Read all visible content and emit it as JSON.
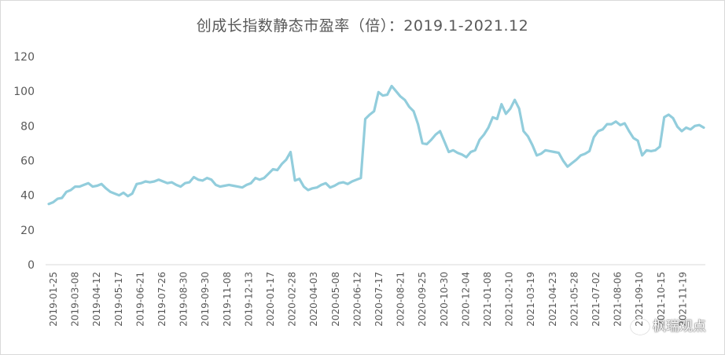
{
  "chart_data": {
    "type": "line",
    "title": "创成长指数静态市盈率（倍）：2019.1-2021.12",
    "xlabel": "",
    "ylabel": "",
    "ylim": [
      0,
      120
    ],
    "yticks": [
      0,
      20,
      40,
      60,
      80,
      100,
      120
    ],
    "grid": false,
    "legend": "none",
    "line_color": "#92cddc",
    "xtick_labels": [
      "2019-01-25",
      "2019-03-08",
      "2019-04-12",
      "2019-05-17",
      "2019-06-21",
      "2019-07-26",
      "2019-08-30",
      "2019-09-30",
      "2019-11-08",
      "2019-12-13",
      "2020-01-17",
      "2020-02-28",
      "2020-04-03",
      "2020-05-08",
      "2020-06-12",
      "2020-07-17",
      "2020-08-21",
      "2020-09-25",
      "2020-10-30",
      "2020-12-04",
      "2021-01-08",
      "2021-02-10",
      "2021-03-19",
      "2021-04-23",
      "2021-05-28",
      "2021-07-02",
      "2021-08-06",
      "2021-09-10",
      "2021-10-15",
      "2021-11-19"
    ],
    "series": [
      {
        "values": [
          35,
          36,
          38,
          38.5,
          42,
          43,
          45,
          45,
          46,
          47,
          45,
          45.5,
          46.5,
          44,
          42,
          41,
          40,
          41.5,
          39.5,
          41,
          46.5,
          47,
          48,
          47.5,
          48,
          49,
          48,
          47,
          47.5,
          46,
          45,
          47,
          47.5,
          50.5,
          49,
          48.5,
          50,
          49,
          46,
          45,
          45.5,
          46,
          45.5,
          45,
          44.5,
          46,
          47,
          50,
          49,
          50,
          52.5,
          55,
          54.5,
          58,
          60.5,
          65,
          48.5,
          49.5,
          45,
          43,
          44,
          44.5,
          46,
          47,
          44.5,
          45.5,
          47,
          47.5,
          46.5,
          48,
          49,
          50,
          84,
          86.5,
          88.5,
          99.5,
          97.5,
          98,
          103,
          100,
          97,
          95,
          91,
          88.5,
          81,
          70,
          69.5,
          72,
          75,
          77,
          71,
          65,
          66,
          64.5,
          63.5,
          62,
          65,
          66,
          72,
          75,
          79,
          85,
          84,
          92.5,
          87,
          90,
          95,
          90,
          77,
          74,
          69,
          63,
          64,
          66,
          65.5,
          65,
          64.5,
          60,
          56.5,
          58.5,
          60.5,
          63,
          64,
          65.5,
          73.5,
          77,
          78,
          81,
          81,
          82.5,
          80.5,
          81.5,
          77,
          73,
          71.5,
          63,
          66,
          65.5,
          66,
          68,
          85,
          86.5,
          84.5,
          79.5,
          77,
          79,
          78,
          80,
          80.5,
          79
        ]
      }
    ]
  },
  "watermark": "枫瑞观点"
}
